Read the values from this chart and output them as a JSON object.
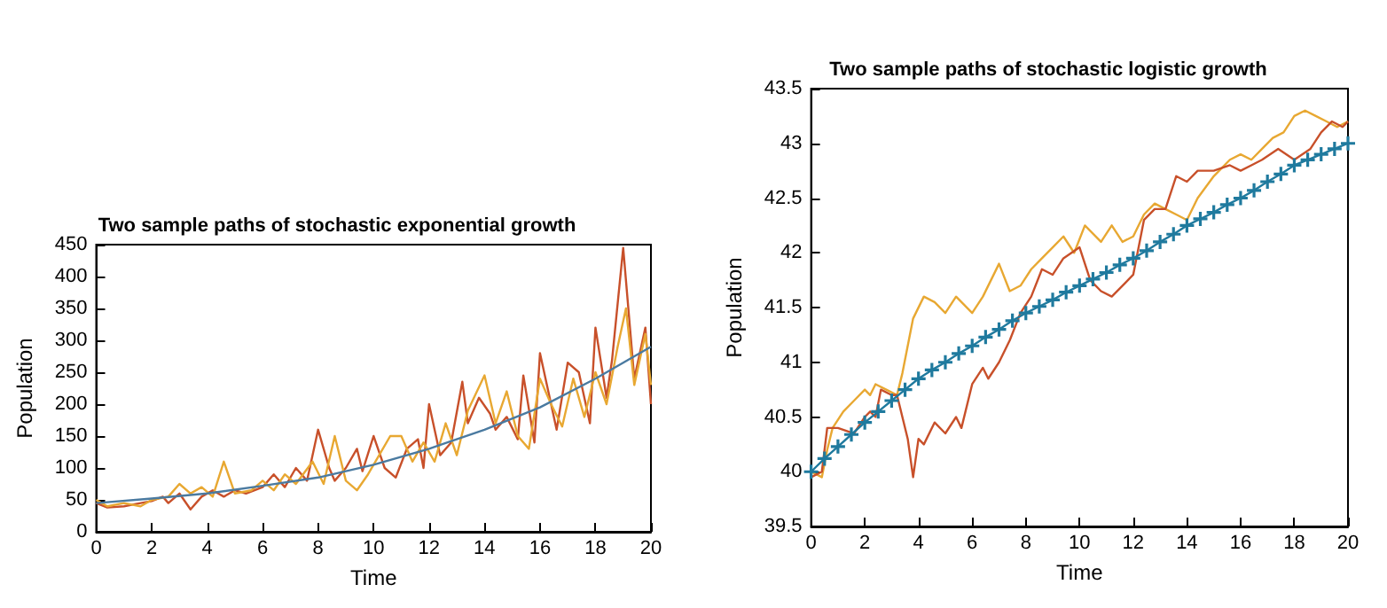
{
  "chart_data": [
    {
      "type": "line",
      "title": "Two sample paths of stochastic exponential growth",
      "xlabel": "Time",
      "ylabel": "Population",
      "xlim": [
        0,
        20
      ],
      "xticks": [
        0,
        2,
        4,
        6,
        8,
        10,
        12,
        14,
        16,
        18,
        20
      ],
      "ylim": [
        0,
        450
      ],
      "yticks": [
        0,
        50,
        100,
        150,
        200,
        250,
        300,
        350,
        400,
        450
      ],
      "series": [
        {
          "color": "#c8502a",
          "x": [
            0,
            0.4,
            1,
            1.6,
            2,
            2.4,
            2.6,
            3,
            3.4,
            3.8,
            4.2,
            4.6,
            5,
            5.4,
            6,
            6.4,
            6.8,
            7.2,
            7.6,
            8,
            8.4,
            8.6,
            9,
            9.4,
            9.6,
            10,
            10.4,
            10.8,
            11.2,
            11.6,
            11.8,
            12,
            12.4,
            12.8,
            13.2,
            13.4,
            13.8,
            14.2,
            14.4,
            14.8,
            15.2,
            15.4,
            15.8,
            16,
            16.6,
            17,
            17.4,
            17.8,
            18,
            18.4,
            18.6,
            19,
            19.4,
            19.8,
            20
          ],
          "values": [
            45,
            38,
            40,
            45,
            48,
            55,
            45,
            60,
            35,
            55,
            65,
            55,
            65,
            60,
            70,
            90,
            70,
            100,
            80,
            160,
            100,
            80,
            100,
            130,
            95,
            150,
            100,
            85,
            130,
            145,
            100,
            200,
            120,
            140,
            235,
            170,
            210,
            185,
            160,
            180,
            145,
            245,
            140,
            280,
            160,
            265,
            250,
            170,
            320,
            210,
            270,
            445,
            240,
            320,
            200
          ]
        },
        {
          "color": "#e8a832",
          "x": [
            0,
            0.4,
            1,
            1.6,
            2,
            2.6,
            3,
            3.4,
            3.8,
            4.2,
            4.6,
            5,
            5.6,
            6,
            6.4,
            6.8,
            7.2,
            7.8,
            8.2,
            8.6,
            9,
            9.4,
            9.8,
            10.2,
            10.6,
            11,
            11.4,
            11.8,
            12.2,
            12.6,
            13,
            13.4,
            14,
            14.4,
            14.8,
            15.2,
            15.6,
            16,
            16.4,
            16.8,
            17.2,
            17.6,
            18,
            18.4,
            18.8,
            19.1,
            19.4,
            19.8,
            20
          ],
          "values": [
            50,
            40,
            45,
            40,
            50,
            55,
            75,
            60,
            70,
            55,
            110,
            60,
            65,
            80,
            65,
            90,
            75,
            110,
            75,
            150,
            80,
            65,
            90,
            120,
            150,
            150,
            110,
            140,
            110,
            170,
            120,
            190,
            245,
            170,
            220,
            150,
            130,
            240,
            200,
            165,
            240,
            180,
            250,
            200,
            290,
            350,
            230,
            310,
            230
          ]
        },
        {
          "color": "#4a7aa0",
          "x": [
            0,
            2,
            4,
            6,
            8,
            10,
            12,
            14,
            16,
            18,
            20
          ],
          "values": [
            45,
            52,
            60,
            72,
            85,
            105,
            130,
            160,
            195,
            240,
            290
          ]
        }
      ]
    },
    {
      "type": "line",
      "title": "Two sample paths of stochastic logistic growth",
      "xlabel": "Time",
      "ylabel": "Population",
      "xlim": [
        0,
        20
      ],
      "xticks": [
        0,
        2,
        4,
        6,
        8,
        10,
        12,
        14,
        16,
        18,
        20
      ],
      "ylim": [
        39.5,
        43.5
      ],
      "yticks": [
        39.5,
        40,
        40.5,
        41,
        41.5,
        42,
        42.5,
        43,
        43.5
      ],
      "series": [
        {
          "color": "#e8a832",
          "x": [
            0,
            0.4,
            0.6,
            0.8,
            1.2,
            1.6,
            2,
            2.2,
            2.4,
            2.8,
            3.2,
            3.4,
            3.8,
            4.2,
            4.6,
            5,
            5.4,
            6,
            6.4,
            7,
            7.4,
            7.8,
            8.2,
            8.6,
            9,
            9.4,
            9.8,
            10.2,
            10.8,
            11.2,
            11.6,
            12,
            12.4,
            12.8,
            13.2,
            13.6,
            14,
            14.4,
            15,
            15.6,
            16,
            16.4,
            16.8,
            17.2,
            17.6,
            18,
            18.4,
            18.8,
            19.2,
            19.6,
            20
          ],
          "values": [
            40,
            39.95,
            40.2,
            40.4,
            40.55,
            40.65,
            40.75,
            40.7,
            40.8,
            40.75,
            40.7,
            40.9,
            41.4,
            41.6,
            41.55,
            41.45,
            41.6,
            41.45,
            41.6,
            41.9,
            41.65,
            41.7,
            41.85,
            41.95,
            42.05,
            42.15,
            42,
            42.25,
            42.1,
            42.25,
            42.1,
            42.15,
            42.35,
            42.45,
            42.4,
            42.35,
            42.3,
            42.5,
            42.7,
            42.85,
            42.9,
            42.85,
            42.95,
            43.05,
            43.1,
            43.25,
            43.3,
            43.25,
            43.2,
            43.15,
            43.2
          ]
        },
        {
          "color": "#c8502a",
          "x": [
            0,
            0.4,
            0.6,
            1,
            1.6,
            2,
            2.2,
            2.4,
            2.6,
            3,
            3.2,
            3.6,
            3.8,
            4,
            4.2,
            4.6,
            5,
            5.4,
            5.6,
            6,
            6.4,
            6.6,
            7,
            7.4,
            7.8,
            8.2,
            8.6,
            9,
            9.4,
            10,
            10.4,
            10.8,
            11.2,
            11.6,
            12,
            12.4,
            12.8,
            13.2,
            13.6,
            14,
            14.4,
            15,
            15.6,
            16,
            16.4,
            16.8,
            17.4,
            18,
            18.6,
            19,
            19.4,
            19.8,
            20
          ],
          "values": [
            39.95,
            40,
            40.4,
            40.4,
            40.35,
            40.5,
            40.55,
            40.5,
            40.75,
            40.7,
            40.7,
            40.3,
            39.95,
            40.3,
            40.25,
            40.45,
            40.35,
            40.5,
            40.4,
            40.8,
            40.95,
            40.85,
            41,
            41.2,
            41.45,
            41.6,
            41.85,
            41.8,
            41.95,
            42.05,
            41.75,
            41.65,
            41.6,
            41.7,
            41.8,
            42.3,
            42.4,
            42.4,
            42.7,
            42.65,
            42.75,
            42.75,
            42.8,
            42.75,
            42.8,
            42.85,
            42.95,
            42.85,
            42.95,
            43.1,
            43.2,
            43.15,
            43.2
          ]
        },
        {
          "color": "#1f7a9e",
          "marker": "cross",
          "x": [
            0,
            0.5,
            1,
            1.5,
            2,
            2.5,
            3,
            3.5,
            4,
            4.5,
            5,
            5.5,
            6,
            6.5,
            7,
            7.5,
            8,
            8.5,
            9,
            9.5,
            10,
            10.5,
            11,
            11.5,
            12,
            12.5,
            13,
            13.5,
            14,
            14.5,
            15,
            15.5,
            16,
            16.5,
            17,
            17.5,
            18,
            18.5,
            19,
            19.5,
            20
          ],
          "values": [
            40,
            40.12,
            40.23,
            40.34,
            40.45,
            40.55,
            40.65,
            40.75,
            40.85,
            40.93,
            41,
            41.08,
            41.15,
            41.23,
            41.3,
            41.38,
            41.45,
            41.51,
            41.57,
            41.64,
            41.7,
            41.76,
            41.82,
            41.89,
            41.95,
            42.02,
            42.1,
            42.17,
            42.25,
            42.31,
            42.37,
            42.44,
            42.5,
            42.57,
            42.65,
            42.72,
            42.8,
            42.85,
            42.9,
            42.95,
            43
          ]
        }
      ]
    }
  ]
}
